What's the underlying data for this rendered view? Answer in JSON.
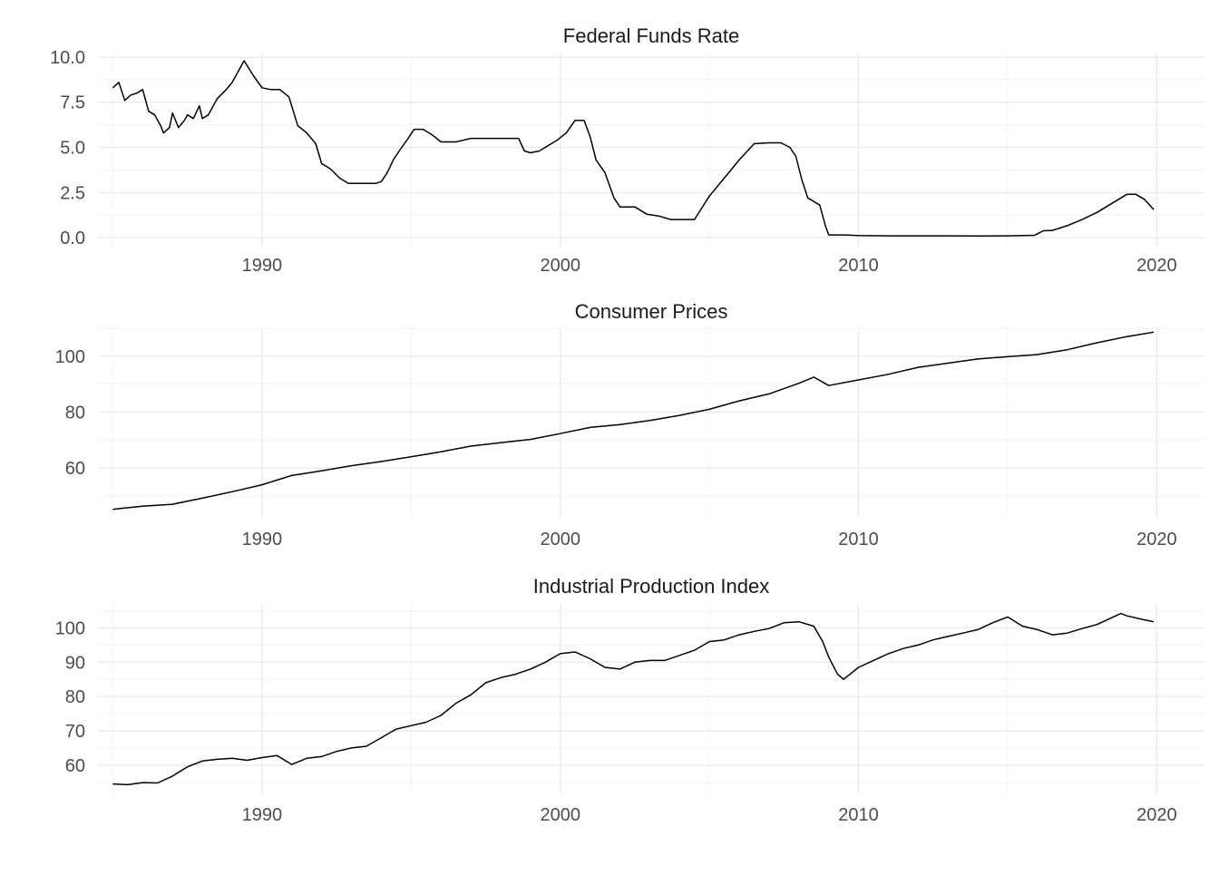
{
  "chart_data": [
    {
      "type": "line",
      "title": "Federal Funds Rate",
      "xlabel": "",
      "ylabel": "",
      "xlim": [
        1984.5,
        2021.6
      ],
      "ylim": [
        -0.5,
        10.25
      ],
      "xticks": [
        1990,
        2000,
        2010,
        2020
      ],
      "xtick_labels": [
        "1990",
        "2000",
        "2010",
        "2020"
      ],
      "yticks": [
        0,
        2.5,
        5,
        7.5,
        10
      ],
      "ytick_labels": [
        "0.0",
        "2.5",
        "5.0",
        "7.5",
        "10.0"
      ],
      "grid": true,
      "series": [
        {
          "x": [
            1985.0,
            1985.2,
            1985.4,
            1985.6,
            1985.8,
            1986.0,
            1986.2,
            1986.4,
            1986.6,
            1986.7,
            1986.9,
            1987.0,
            1987.2,
            1987.4,
            1987.5,
            1987.7,
            1987.9,
            1988.0,
            1988.2,
            1988.5,
            1988.8,
            1989.0,
            1989.2,
            1989.4,
            1989.7,
            1990.0,
            1990.3,
            1990.6,
            1990.9,
            1991.2,
            1991.5,
            1991.8,
            1992.0,
            1992.3,
            1992.6,
            1992.9,
            1993.2,
            1993.5,
            1993.8,
            1994.0,
            1994.2,
            1994.4,
            1994.6,
            1994.9,
            1995.1,
            1995.4,
            1995.7,
            1996.0,
            1996.5,
            1997.0,
            1997.5,
            1998.0,
            1998.6,
            1998.8,
            1999.0,
            1999.3,
            1999.6,
            1999.9,
            2000.2,
            2000.5,
            2000.8,
            2001.0,
            2001.2,
            2001.5,
            2001.8,
            2002.0,
            2002.5,
            2002.9,
            2003.3,
            2003.7,
            2004.0,
            2004.5,
            2005.0,
            2005.5,
            2006.0,
            2006.5,
            2007.0,
            2007.4,
            2007.7,
            2007.9,
            2008.1,
            2008.3,
            2008.5,
            2008.7,
            2008.9,
            2009.0,
            2009.5,
            2010.0,
            2011.0,
            2012.0,
            2013.0,
            2014.0,
            2015.0,
            2015.9,
            2016.2,
            2016.5,
            2017.0,
            2017.5,
            2018.0,
            2018.5,
            2018.8,
            2019.0,
            2019.3,
            2019.6,
            2019.9
          ],
          "y": [
            8.3,
            8.6,
            7.6,
            7.9,
            8.0,
            8.2,
            7.0,
            6.8,
            6.2,
            5.8,
            6.1,
            6.9,
            6.1,
            6.5,
            6.8,
            6.6,
            7.3,
            6.6,
            6.8,
            7.7,
            8.2,
            8.6,
            9.2,
            9.8,
            9.0,
            8.3,
            8.2,
            8.2,
            7.8,
            6.2,
            5.8,
            5.2,
            4.1,
            3.8,
            3.3,
            3.0,
            3.0,
            3.0,
            3.0,
            3.1,
            3.6,
            4.3,
            4.8,
            5.5,
            6.0,
            6.0,
            5.7,
            5.3,
            5.3,
            5.5,
            5.5,
            5.5,
            5.5,
            4.8,
            4.7,
            4.8,
            5.1,
            5.4,
            5.8,
            6.5,
            6.5,
            5.6,
            4.3,
            3.6,
            2.2,
            1.7,
            1.7,
            1.3,
            1.2,
            1.0,
            1.0,
            1.0,
            2.3,
            3.3,
            4.3,
            5.2,
            5.25,
            5.25,
            5.0,
            4.5,
            3.2,
            2.2,
            2.0,
            1.8,
            0.6,
            0.15,
            0.15,
            0.12,
            0.1,
            0.1,
            0.1,
            0.09,
            0.1,
            0.13,
            0.38,
            0.4,
            0.66,
            1.0,
            1.4,
            1.9,
            2.2,
            2.4,
            2.4,
            2.1,
            1.55
          ]
        }
      ]
    },
    {
      "type": "line",
      "title": "Consumer Prices",
      "xlabel": "",
      "ylabel": "",
      "xlim": [
        1984.5,
        2021.6
      ],
      "ylim": [
        42.5,
        110
      ],
      "xticks": [
        1990,
        2000,
        2010,
        2020
      ],
      "xtick_labels": [
        "1990",
        "2000",
        "2010",
        "2020"
      ],
      "yticks": [
        60,
        80,
        100
      ],
      "ytick_labels": [
        "60",
        "80",
        "100"
      ],
      "grid": true,
      "series": [
        {
          "x": [
            1985.0,
            1986.0,
            1987.0,
            1988.0,
            1989.0,
            1990.0,
            1991.0,
            1992.0,
            1993.0,
            1994.0,
            1995.0,
            1996.0,
            1997.0,
            1998.0,
            1999.0,
            2000.0,
            2001.0,
            2002.0,
            2003.0,
            2004.0,
            2005.0,
            2006.0,
            2007.0,
            2008.0,
            2008.5,
            2009.0,
            2010.0,
            2011.0,
            2012.0,
            2013.0,
            2014.0,
            2015.0,
            2016.0,
            2017.0,
            2018.0,
            2019.0,
            2019.9
          ],
          "y": [
            45.2,
            46.3,
            47.0,
            49.2,
            51.5,
            54.0,
            57.3,
            59.0,
            60.8,
            62.3,
            64.0,
            65.8,
            67.8,
            69.0,
            70.2,
            72.3,
            74.5,
            75.5,
            77.0,
            78.8,
            81.0,
            84.0,
            86.5,
            90.3,
            92.5,
            89.5,
            91.5,
            93.5,
            96.0,
            97.5,
            99.0,
            99.8,
            100.6,
            102.3,
            104.8,
            107.0,
            108.6
          ]
        }
      ]
    },
    {
      "type": "line",
      "title": "Industrial Production Index",
      "xlabel": "",
      "ylabel": "",
      "xlim": [
        1984.5,
        2021.6
      ],
      "ylim": [
        51.5,
        107
      ],
      "xticks": [
        1990,
        2000,
        2010,
        2020
      ],
      "xtick_labels": [
        "1990",
        "2000",
        "2010",
        "2020"
      ],
      "yticks": [
        60,
        70,
        80,
        90,
        100
      ],
      "ytick_labels": [
        "60",
        "70",
        "80",
        "90",
        "100"
      ],
      "grid": true,
      "series": [
        {
          "x": [
            1985.0,
            1985.5,
            1986.0,
            1986.5,
            1987.0,
            1987.5,
            1988.0,
            1988.5,
            1989.0,
            1989.5,
            1990.0,
            1990.5,
            1991.0,
            1991.5,
            1992.0,
            1992.5,
            1993.0,
            1993.5,
            1994.0,
            1994.5,
            1995.0,
            1995.5,
            1996.0,
            1996.5,
            1997.0,
            1997.5,
            1998.0,
            1998.5,
            1999.0,
            1999.5,
            2000.0,
            2000.5,
            2001.0,
            2001.5,
            2002.0,
            2002.5,
            2003.0,
            2003.5,
            2004.0,
            2004.5,
            2005.0,
            2005.5,
            2006.0,
            2006.5,
            2007.0,
            2007.5,
            2008.0,
            2008.5,
            2008.8,
            2009.0,
            2009.3,
            2009.5,
            2010.0,
            2010.5,
            2011.0,
            2011.5,
            2012.0,
            2012.5,
            2013.0,
            2013.5,
            2014.0,
            2014.5,
            2015.0,
            2015.5,
            2016.0,
            2016.5,
            2017.0,
            2017.5,
            2018.0,
            2018.5,
            2018.8,
            2019.0,
            2019.5,
            2019.9
          ],
          "y": [
            54.5,
            54.3,
            54.9,
            54.8,
            56.8,
            59.5,
            61.2,
            61.7,
            62.0,
            61.4,
            62.2,
            62.8,
            60.2,
            62.0,
            62.5,
            64.0,
            65.0,
            65.5,
            68.0,
            70.5,
            71.5,
            72.5,
            74.5,
            78.0,
            80.5,
            84.0,
            85.5,
            86.5,
            88.0,
            90.0,
            92.5,
            93.0,
            91.0,
            88.5,
            88.0,
            90.0,
            90.5,
            90.5,
            92.0,
            93.5,
            96.0,
            96.5,
            98.0,
            99.0,
            99.8,
            101.5,
            101.8,
            100.5,
            96.0,
            91.5,
            86.5,
            85.0,
            88.5,
            90.5,
            92.5,
            94.0,
            95.0,
            96.5,
            97.5,
            98.5,
            99.5,
            101.5,
            103.2,
            100.5,
            99.5,
            98.0,
            98.5,
            99.8,
            101.0,
            103.0,
            104.2,
            103.5,
            102.5,
            101.8
          ]
        }
      ]
    }
  ]
}
